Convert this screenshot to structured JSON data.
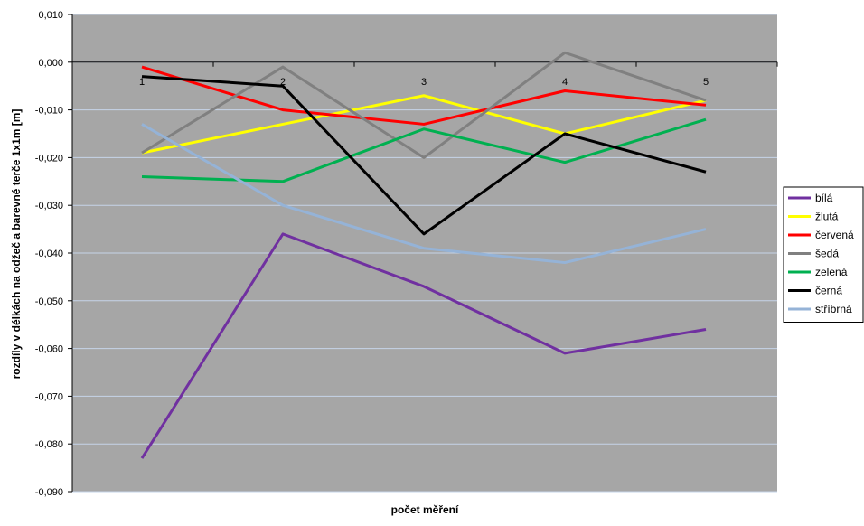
{
  "chart_data": {
    "type": "line",
    "title": "",
    "xlabel": "počet měření",
    "ylabel": "rozdíly v délkách na odžeč a barevné terče 1x1m [m]",
    "categories": [
      "1",
      "2",
      "3",
      "4",
      "5"
    ],
    "ylim": [
      -0.09,
      0.01
    ],
    "ytick_step": 0.01,
    "ytick_labels": [
      "0,010",
      "0,000",
      "-0,010",
      "-0,020",
      "-0,030",
      "-0,040",
      "-0,050",
      "-0,060",
      "-0,070",
      "-0,080",
      "-0,090"
    ],
    "grid": true,
    "plot_background": "#a6a6a6",
    "grid_color": "#c6d4e8",
    "legend_position": "right",
    "series": [
      {
        "name": "bílá",
        "color": "#7030a0",
        "values": [
          -0.083,
          -0.036,
          -0.047,
          -0.061,
          -0.056
        ]
      },
      {
        "name": "žlutá",
        "color": "#ffff00",
        "values": [
          -0.019,
          -0.013,
          -0.007,
          -0.015,
          -0.008
        ]
      },
      {
        "name": "červená",
        "color": "#ff0000",
        "values": [
          -0.001,
          -0.01,
          -0.013,
          -0.006,
          -0.009
        ]
      },
      {
        "name": "šedá",
        "color": "#808080",
        "values": [
          -0.019,
          -0.001,
          -0.02,
          0.002,
          -0.008
        ]
      },
      {
        "name": "zelená",
        "color": "#00b050",
        "values": [
          -0.024,
          -0.025,
          -0.014,
          -0.021,
          -0.012
        ]
      },
      {
        "name": "černá",
        "color": "#000000",
        "values": [
          -0.003,
          -0.005,
          -0.036,
          -0.015,
          -0.023
        ]
      },
      {
        "name": "stříbrná",
        "color": "#95b3d7",
        "values": [
          -0.013,
          -0.03,
          -0.039,
          -0.042,
          -0.035
        ]
      }
    ]
  }
}
